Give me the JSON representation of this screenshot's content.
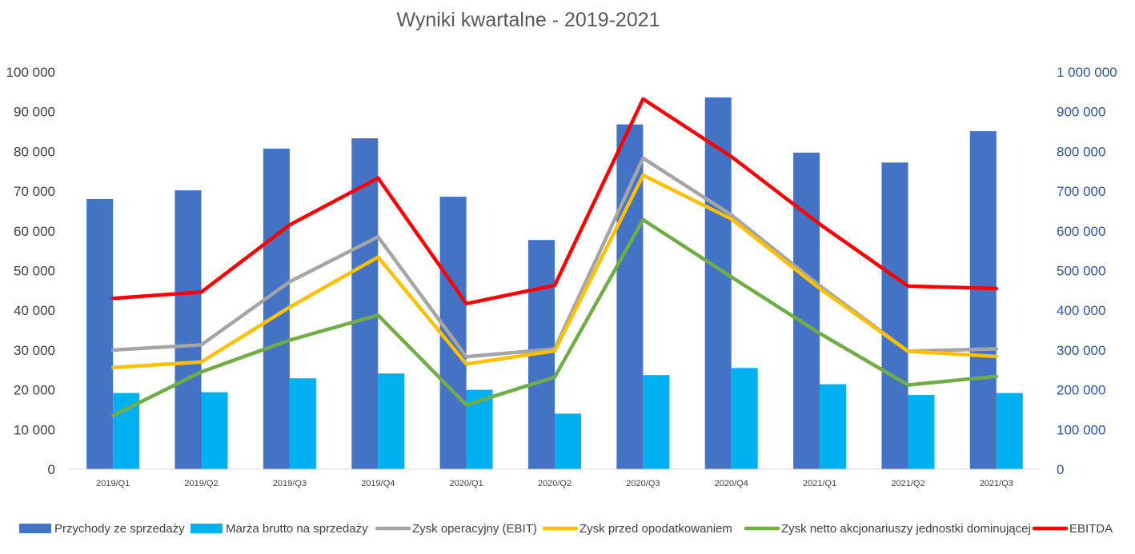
{
  "chart_data": {
    "type": "bar",
    "title": "Wyniki kwartalne - 2019-2021",
    "categories": [
      "2019/Q1",
      "2019/Q2",
      "2019/Q3",
      "2019/Q4",
      "2020/Q1",
      "2020/Q2",
      "2020/Q3",
      "2020/Q4",
      "2021/Q1",
      "2021/Q2",
      "2021/Q3"
    ],
    "left_axis": {
      "ylim": [
        0,
        100000
      ],
      "tick_labels": [
        "0",
        "10 000",
        "20 000",
        "30 000",
        "40 000",
        "50 000",
        "60 000",
        "70 000",
        "80 000",
        "90 000",
        "100 000"
      ]
    },
    "right_axis": {
      "ylim": [
        0,
        1000000
      ],
      "tick_labels": [
        "0",
        "100 000",
        "200 000",
        "300 000",
        "400 000",
        "500 000",
        "600 000",
        "700 000",
        "800 000",
        "900 000",
        "1 000 000"
      ]
    },
    "series": [
      {
        "name": "Przychody ze sprzedaży",
        "kind": "bar",
        "axis": "right",
        "color": "#4472c4",
        "values": [
          680000,
          702000,
          807000,
          833000,
          686000,
          577000,
          868000,
          936000,
          797000,
          772000,
          851000
        ]
      },
      {
        "name": "Marża brutto na sprzedaży",
        "kind": "bar",
        "axis": "left",
        "color": "#00b0f0",
        "values": [
          19200,
          19400,
          22900,
          24100,
          20000,
          14000,
          23700,
          25500,
          21400,
          18700,
          19200
        ]
      },
      {
        "name": "Zysk operacyjny (EBIT)",
        "kind": "line",
        "axis": "left",
        "color": "#a5a5a5",
        "values": [
          30000,
          31300,
          47200,
          58500,
          28300,
          30300,
          78300,
          64000,
          46200,
          29700,
          30300
        ]
      },
      {
        "name": "Zysk przed opodatkowaniem",
        "kind": "line",
        "axis": "left",
        "color": "#ffc000",
        "values": [
          25600,
          27000,
          40800,
          53400,
          26500,
          29800,
          74000,
          63000,
          45500,
          29700,
          28400
        ]
      },
      {
        "name": "Zysk netto akcjonariuszy jednostki dominującej",
        "kind": "line",
        "axis": "left",
        "color": "#70ad47",
        "values": [
          13500,
          24500,
          32500,
          38800,
          16200,
          23200,
          62800,
          48400,
          34200,
          21200,
          23400
        ]
      },
      {
        "name": "EBITDA",
        "kind": "line",
        "axis": "left",
        "color": "#ff0000",
        "values": [
          43000,
          44600,
          61500,
          73300,
          41700,
          46300,
          93200,
          78700,
          61700,
          46100,
          45500
        ]
      }
    ],
    "legend_position": "bottom",
    "grid": false
  }
}
